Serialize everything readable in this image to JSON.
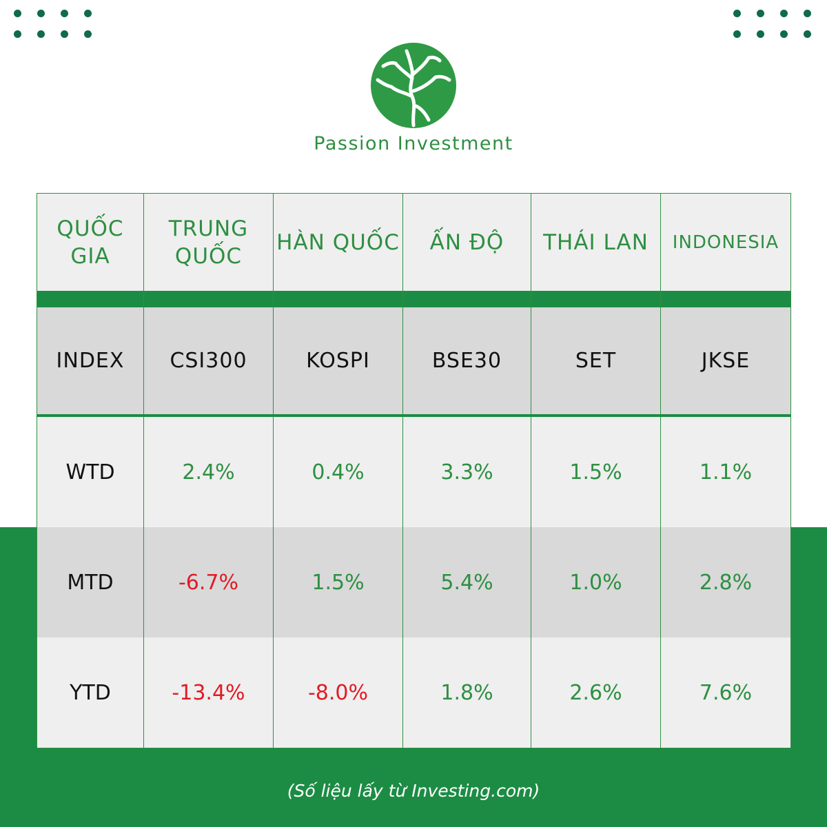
{
  "brand": {
    "name": "Passion Investment",
    "green": "#1c8c44",
    "text_green": "#2e8f42",
    "negative_red": "#e01b24"
  },
  "table": {
    "header": [
      "QUỐC GIA",
      "TRUNG QUỐC",
      "HÀN QUỐC",
      "ẤN ĐỘ",
      "THÁI LAN",
      "INDONESIA"
    ],
    "index_row": [
      "INDEX",
      "CSI300",
      "KOSPI",
      "BSE30",
      "SET",
      "JKSE"
    ],
    "rows": [
      {
        "label": "WTD",
        "values": [
          "2.4%",
          "0.4%",
          "3.3%",
          "1.5%",
          "1.1%"
        ]
      },
      {
        "label": "MTD",
        "values": [
          "-6.7%",
          "1.5%",
          "5.4%",
          "1.0%",
          "2.8%"
        ]
      },
      {
        "label": "YTD",
        "values": [
          "-13.4%",
          "-8.0%",
          "1.8%",
          "2.6%",
          "7.6%"
        ]
      }
    ]
  },
  "source_note": "(Số liệu lấy từ Investing.com)"
}
